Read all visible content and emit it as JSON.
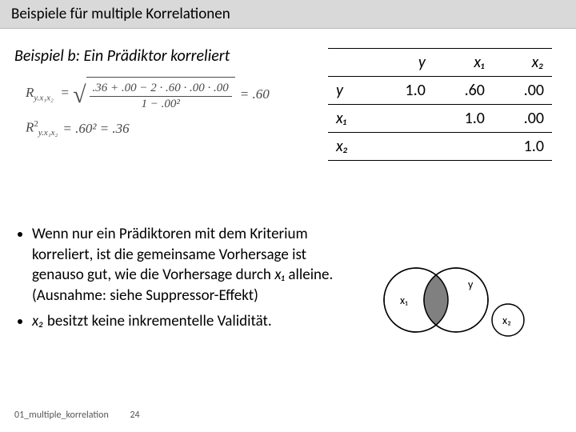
{
  "header": {
    "title": "Beispiele für multiple Korrelationen"
  },
  "subtitle": "Beispiel b: Ein Prädiktor korreliert",
  "formula": {
    "lhs1_base": "R",
    "lhs1_sub": "y.x₁x₂",
    "num": ".36 + .00 − 2 · .60 · .00 · .00",
    "den": "1 − .00²",
    "result1": "= .60",
    "lhs2_base": "R",
    "lhs2_sub": "y.x₁x₂",
    "lhs2_sup": "2",
    "rhs2": "= .60² = .36"
  },
  "table": {
    "headers": [
      "",
      "y",
      "x₁",
      "x₂"
    ],
    "rows": [
      {
        "label": "y",
        "cells": [
          "1.0",
          ".60",
          ".00"
        ]
      },
      {
        "label": "x₁",
        "cells": [
          "",
          "1.0",
          ".00"
        ]
      },
      {
        "label": "x₂",
        "cells": [
          "",
          "",
          "1.0"
        ]
      }
    ]
  },
  "bullets": [
    "Wenn nur ein Prädiktoren mit dem Kriterium korreliert, ist die gemeinsame Vorhersage ist genauso gut, wie die Vorhersage durch <i>x₁</i> alleine. (Ausnahme: siehe Suppressor-Effekt)",
    "<i>x₂</i> besitzt keine inkrementelle Validität."
  ],
  "venn": {
    "x1_label": "x₁",
    "y_label": "y",
    "x2_label": "x₂",
    "circle_stroke": "#000",
    "overlap_fill": "#808080",
    "bg": "#ffffff"
  },
  "footer": {
    "doc": "01_multiple_korrelation",
    "page": "24"
  }
}
